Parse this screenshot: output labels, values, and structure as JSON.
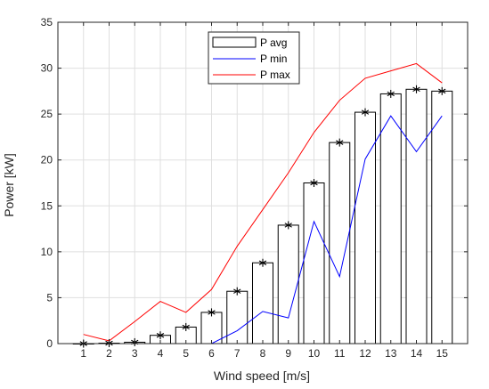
{
  "chart_data": {
    "type": "bar",
    "xlabel": "Wind speed [m/s]",
    "ylabel": "Power [kW]",
    "categories": [
      "1",
      "2",
      "3",
      "4",
      "5",
      "6",
      "7",
      "8",
      "9",
      "10",
      "11",
      "12",
      "13",
      "14",
      "15"
    ],
    "x": [
      1,
      2,
      3,
      4,
      5,
      6,
      7,
      8,
      9,
      10,
      11,
      12,
      13,
      14,
      15
    ],
    "xlim": [
      0,
      16
    ],
    "ylim": [
      0,
      35
    ],
    "yticks": [
      "0",
      "5",
      "10",
      "15",
      "20",
      "25",
      "30",
      "35"
    ],
    "grid": true,
    "legend_position": "top-center",
    "series": [
      {
        "name": "P avg",
        "kind": "bar",
        "color": "#000000",
        "marker": "asterisk",
        "values": [
          0.0,
          0.05,
          0.15,
          0.9,
          1.8,
          3.4,
          5.7,
          8.8,
          12.9,
          17.5,
          21.9,
          25.2,
          27.2,
          27.7,
          27.5
        ]
      },
      {
        "name": "P min",
        "kind": "line",
        "color": "#0000ff",
        "values": [
          0.0,
          0.0,
          0.0,
          0.0,
          0.0,
          0.0,
          1.4,
          3.5,
          2.8,
          13.3,
          7.3,
          20.1,
          24.8,
          20.9,
          24.8
        ]
      },
      {
        "name": "P max",
        "kind": "line",
        "color": "#ff0000",
        "values": [
          1.0,
          0.3,
          2.4,
          4.6,
          3.4,
          5.9,
          10.6,
          14.6,
          18.6,
          23.0,
          26.5,
          28.9,
          29.7,
          30.5,
          28.4
        ]
      }
    ]
  }
}
